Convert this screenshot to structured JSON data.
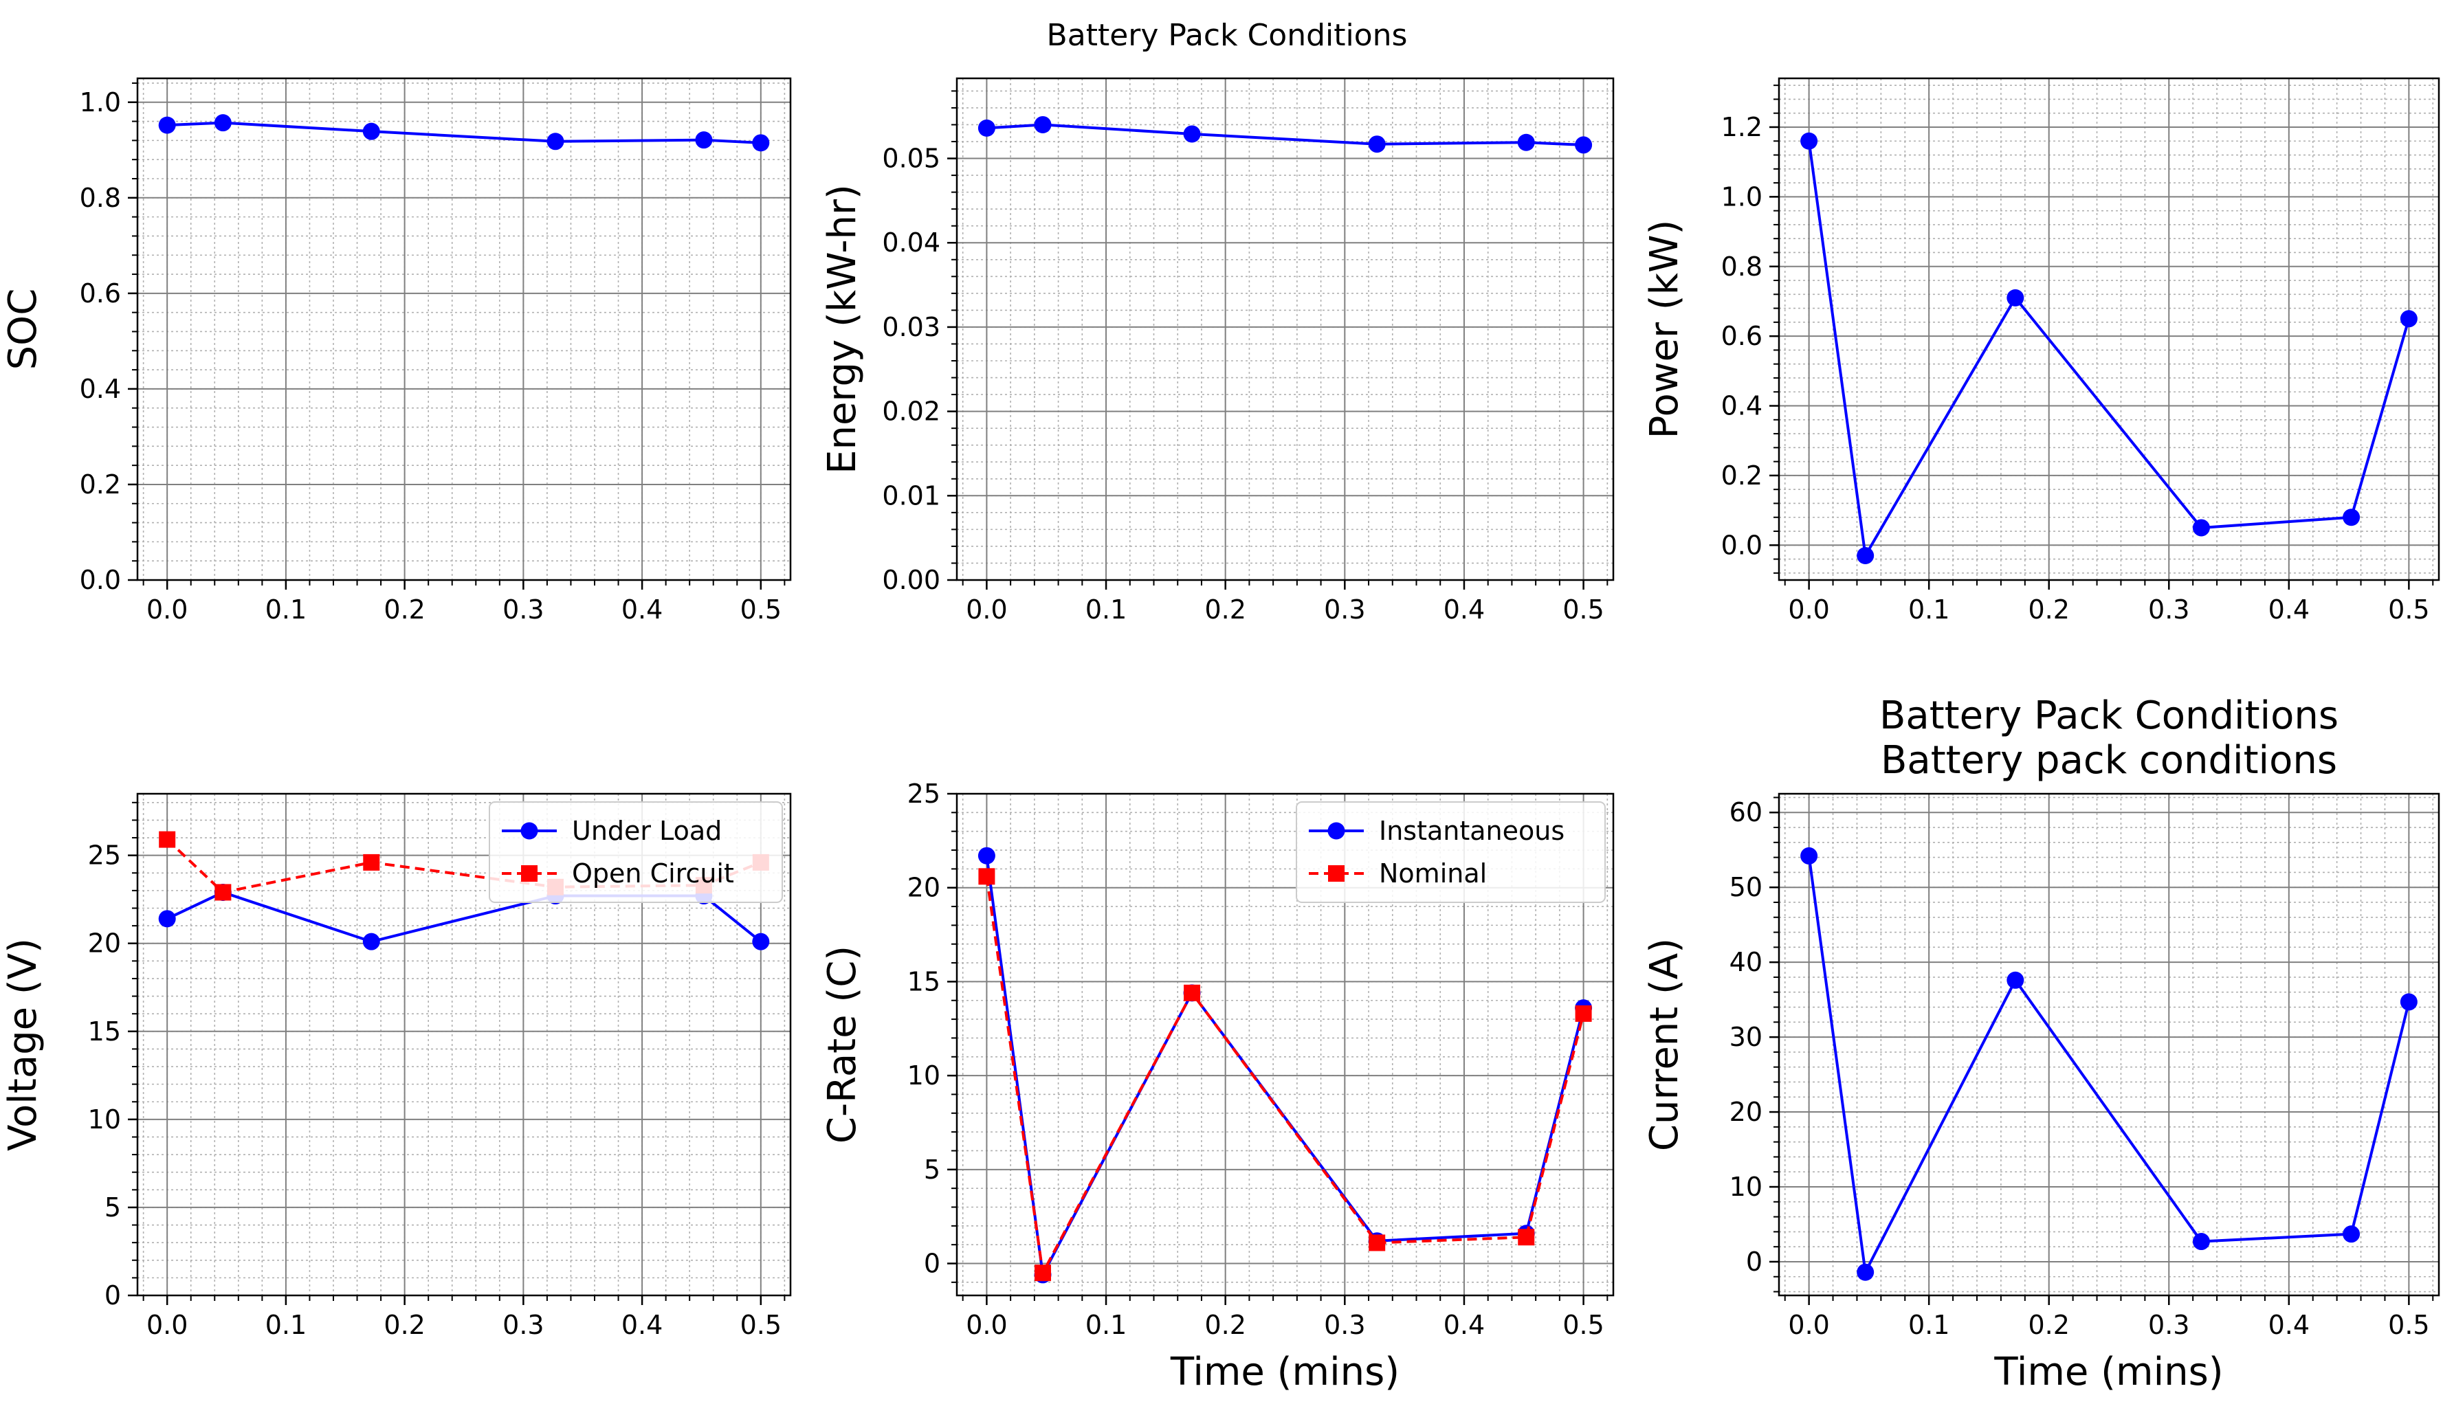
{
  "figure": {
    "suptitle": "Battery Pack Conditions"
  },
  "colors": {
    "blue": "#0000ff",
    "red": "#ff0000",
    "grid_major": "#808080",
    "grid_minor": "#b0b0b0"
  },
  "chart_data": [
    {
      "type": "line",
      "title": "",
      "xlabel": "",
      "ylabel": "SOC",
      "xlim": [
        -0.025,
        0.525
      ],
      "ylim": [
        0,
        1.05
      ],
      "xticks": [
        0.0,
        0.1,
        0.2,
        0.3,
        0.4,
        0.5
      ],
      "xtick_labels": [
        "0.0",
        "0.1",
        "0.2",
        "0.3",
        "0.4",
        "0.5"
      ],
      "yticks": [
        0.0,
        0.2,
        0.4,
        0.6,
        0.8,
        1.0
      ],
      "ytick_labels": [
        "0.0",
        "0.2",
        "0.4",
        "0.6",
        "0.8",
        "1.0"
      ],
      "grid": true,
      "legend": null,
      "x": [
        0.0,
        0.047,
        0.172,
        0.327,
        0.452,
        0.5
      ],
      "series": [
        {
          "name": "",
          "values": [
            0.952,
            0.957,
            0.939,
            0.918,
            0.921,
            0.915
          ],
          "color": "#0000ff",
          "marker": "circle",
          "linestyle": "solid"
        }
      ]
    },
    {
      "type": "line",
      "title": "",
      "xlabel": "",
      "ylabel": "Energy (kW-hr)",
      "xlim": [
        -0.025,
        0.525
      ],
      "ylim": [
        0,
        0.0595
      ],
      "xticks": [
        0.0,
        0.1,
        0.2,
        0.3,
        0.4,
        0.5
      ],
      "xtick_labels": [
        "0.0",
        "0.1",
        "0.2",
        "0.3",
        "0.4",
        "0.5"
      ],
      "yticks": [
        0.0,
        0.01,
        0.02,
        0.03,
        0.04,
        0.05
      ],
      "ytick_labels": [
        "0.00",
        "0.01",
        "0.02",
        "0.03",
        "0.04",
        "0.05"
      ],
      "grid": true,
      "legend": null,
      "x": [
        0.0,
        0.047,
        0.172,
        0.327,
        0.452,
        0.5
      ],
      "series": [
        {
          "name": "",
          "values": [
            0.0536,
            0.054,
            0.0529,
            0.0517,
            0.0519,
            0.0516
          ],
          "color": "#0000ff",
          "marker": "circle",
          "linestyle": "solid"
        }
      ]
    },
    {
      "type": "line",
      "title": "",
      "xlabel": "",
      "ylabel": "Power (kW)",
      "xlim": [
        -0.025,
        0.525
      ],
      "ylim": [
        -0.1,
        1.34
      ],
      "xticks": [
        0.0,
        0.1,
        0.2,
        0.3,
        0.4,
        0.5
      ],
      "xtick_labels": [
        "0.0",
        "0.1",
        "0.2",
        "0.3",
        "0.4",
        "0.5"
      ],
      "yticks": [
        0.0,
        0.2,
        0.4,
        0.6,
        0.8,
        1.0,
        1.2
      ],
      "ytick_labels": [
        "0.0",
        "0.2",
        "0.4",
        "0.6",
        "0.8",
        "1.0",
        "1.2"
      ],
      "grid": true,
      "legend": null,
      "x": [
        0.0,
        0.047,
        0.172,
        0.327,
        0.452,
        0.5
      ],
      "series": [
        {
          "name": "",
          "values": [
            1.16,
            -0.03,
            0.71,
            0.05,
            0.08,
            0.65
          ],
          "color": "#0000ff",
          "marker": "circle",
          "linestyle": "solid"
        }
      ]
    },
    {
      "type": "line",
      "title": "",
      "xlabel": "",
      "ylabel": "Voltage (V)",
      "xlim": [
        -0.025,
        0.525
      ],
      "ylim": [
        0,
        28.5
      ],
      "xticks": [
        0.0,
        0.1,
        0.2,
        0.3,
        0.4,
        0.5
      ],
      "xtick_labels": [
        "0.0",
        "0.1",
        "0.2",
        "0.3",
        "0.4",
        "0.5"
      ],
      "yticks": [
        0,
        5,
        10,
        15,
        20,
        25
      ],
      "ytick_labels": [
        "0",
        "5",
        "10",
        "15",
        "20",
        "25"
      ],
      "grid": true,
      "legend": "top-right",
      "x": [
        0.0,
        0.047,
        0.172,
        0.327,
        0.452,
        0.5
      ],
      "series": [
        {
          "name": "Under Load",
          "values": [
            21.4,
            22.9,
            20.1,
            22.7,
            22.7,
            20.1
          ],
          "color": "#0000ff",
          "marker": "circle",
          "linestyle": "solid"
        },
        {
          "name": "Open Circuit",
          "values": [
            25.9,
            22.9,
            24.6,
            23.2,
            23.3,
            24.6
          ],
          "color": "#ff0000",
          "marker": "square",
          "linestyle": "dashed"
        }
      ]
    },
    {
      "type": "line",
      "title": "",
      "xlabel": "Time (mins)",
      "ylabel": "C-Rate (C)",
      "xlim": [
        -0.025,
        0.525
      ],
      "ylim": [
        -1.7,
        25
      ],
      "xticks": [
        0.0,
        0.1,
        0.2,
        0.3,
        0.4,
        0.5
      ],
      "xtick_labels": [
        "0.0",
        "0.1",
        "0.2",
        "0.3",
        "0.4",
        "0.5"
      ],
      "yticks": [
        0,
        5,
        10,
        15,
        20,
        25
      ],
      "ytick_labels": [
        "0",
        "5",
        "10",
        "15",
        "20",
        "25"
      ],
      "grid": true,
      "legend": "top-right",
      "x": [
        0.0,
        0.047,
        0.172,
        0.327,
        0.452,
        0.5
      ],
      "series": [
        {
          "name": "Instantaneous",
          "values": [
            21.7,
            -0.6,
            14.4,
            1.2,
            1.6,
            13.6
          ],
          "color": "#0000ff",
          "marker": "circle",
          "linestyle": "solid"
        },
        {
          "name": "Nominal",
          "values": [
            20.6,
            -0.5,
            14.4,
            1.1,
            1.4,
            13.3
          ],
          "color": "#ff0000",
          "marker": "square",
          "linestyle": "dashed"
        }
      ]
    },
    {
      "type": "line",
      "title": "Battery Pack Conditions\nBattery pack conditions",
      "title_lines": [
        "Battery Pack Conditions",
        "Battery pack conditions"
      ],
      "xlabel": "Time (mins)",
      "ylabel": "Current (A)",
      "xlim": [
        -0.025,
        0.525
      ],
      "ylim": [
        -4.5,
        62.5
      ],
      "xticks": [
        0.0,
        0.1,
        0.2,
        0.3,
        0.4,
        0.5
      ],
      "xtick_labels": [
        "0.0",
        "0.1",
        "0.2",
        "0.3",
        "0.4",
        "0.5"
      ],
      "yticks": [
        0,
        10,
        20,
        30,
        40,
        50,
        60
      ],
      "ytick_labels": [
        "0",
        "10",
        "20",
        "30",
        "40",
        "50",
        "60"
      ],
      "grid": true,
      "legend": null,
      "x": [
        0.0,
        0.047,
        0.172,
        0.327,
        0.452,
        0.5
      ],
      "series": [
        {
          "name": "",
          "values": [
            54.2,
            -1.4,
            37.6,
            2.7,
            3.7,
            34.7
          ],
          "color": "#0000ff",
          "marker": "circle",
          "linestyle": "solid"
        }
      ]
    }
  ]
}
